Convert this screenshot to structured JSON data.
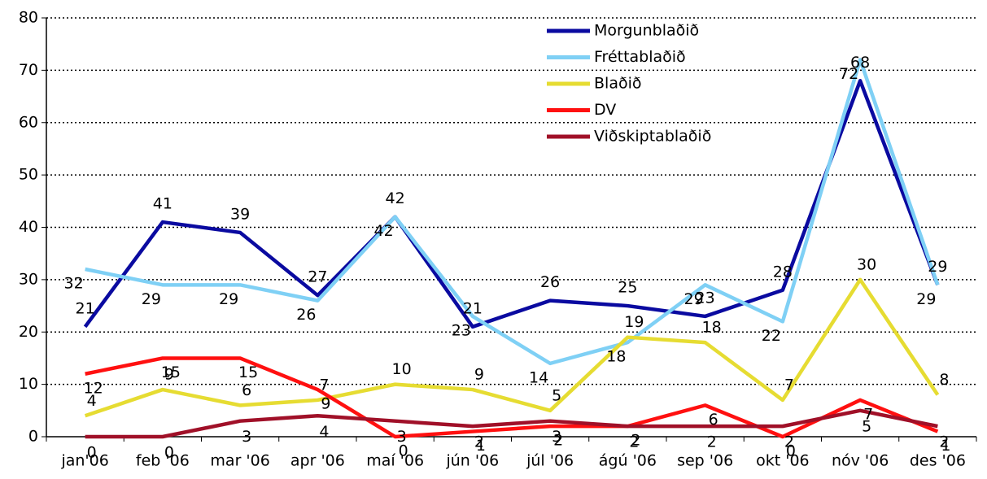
{
  "chart_data": {
    "type": "line",
    "categories": [
      "jan'06",
      "feb '06",
      "mar '06",
      "apr '06",
      "maí '06",
      "jún '06",
      "júl '06",
      "ágú '06",
      "sep '06",
      "okt '06",
      "nóv '06",
      "des '06"
    ],
    "series": [
      {
        "name": "Morgunblaðið",
        "color": "#0a0aa0",
        "values": [
          21,
          41,
          39,
          27,
          42,
          21,
          26,
          25,
          23,
          28,
          68,
          29
        ]
      },
      {
        "name": "Fréttablaðið",
        "color": "#7fd0f5",
        "values": [
          32,
          29,
          29,
          26,
          42,
          23,
          14,
          18,
          29,
          22,
          72,
          29
        ]
      },
      {
        "name": "Blaðið",
        "color": "#e6dc32",
        "values": [
          4,
          9,
          6,
          7,
          10,
          9,
          5,
          19,
          18,
          7,
          30,
          8
        ]
      },
      {
        "name": "DV",
        "color": "#ff1010",
        "values": [
          12,
          15,
          15,
          9,
          0,
          1,
          2,
          2,
          6,
          0,
          7,
          1
        ]
      },
      {
        "name": "Viðskiptablaðið",
        "color": "#a01028",
        "values": [
          0,
          0,
          3,
          4,
          3,
          2,
          3,
          2,
          2,
          2,
          5,
          2
        ]
      }
    ],
    "ylim": [
      0,
      80
    ],
    "yticks": [
      0,
      10,
      20,
      30,
      40,
      50,
      60,
      70,
      80
    ],
    "grid": true,
    "legend": "top-right"
  }
}
